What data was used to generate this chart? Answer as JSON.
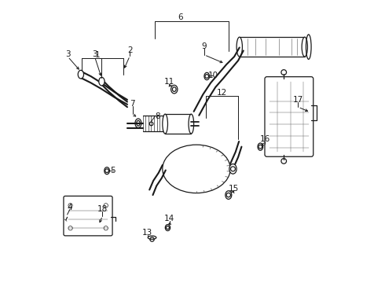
{
  "background_color": "#ffffff",
  "line_color": "#1a1a1a",
  "figsize": [
    4.9,
    3.6
  ],
  "dpi": 100
}
